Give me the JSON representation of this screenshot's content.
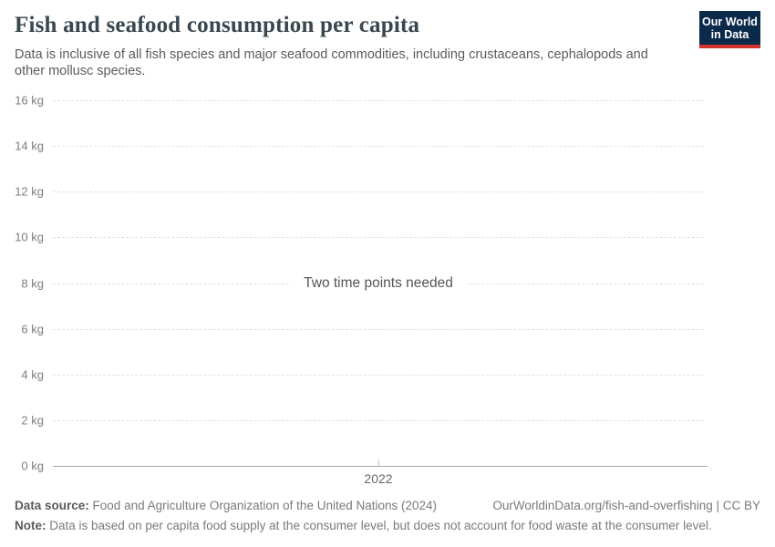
{
  "header": {
    "title": "Fish and seafood consumption per capita",
    "subtitle": "Data is inclusive of all fish species and major seafood commodities, including crustaceans, cephalopods and other mollusc species.",
    "logo": {
      "line1": "Our World",
      "line2": "in Data",
      "bg_color": "#0b2949",
      "accent_color": "#d1342c"
    }
  },
  "chart_data": {
    "type": "line",
    "title": "Fish and seafood consumption per capita",
    "series": [],
    "empty_state_message": "Two time points needed",
    "unit": "kg",
    "ylim": [
      0,
      16
    ],
    "y_ticks": [
      0,
      2,
      4,
      6,
      8,
      10,
      12,
      14,
      16
    ],
    "y_tick_labels": [
      "0 kg",
      "2 kg",
      "4 kg",
      "6 kg",
      "8 kg",
      "10 kg",
      "12 kg",
      "14 kg",
      "16 kg"
    ],
    "x_ticks": [
      "2022"
    ],
    "grid": true,
    "gridline_color": "#e2e2e2",
    "axis_color": "#a8a8a8",
    "message_anchor_value": 8
  },
  "footer": {
    "data_source_label": "Data source:",
    "data_source_value": "Food and Agriculture Organization of the United Nations (2024)",
    "link": "OurWorldinData.org/fish-and-overfishing | CC BY",
    "note_label": "Note:",
    "note_value": "Data is based on per capita food supply at the consumer level, but does not account for food waste at the consumer level."
  }
}
